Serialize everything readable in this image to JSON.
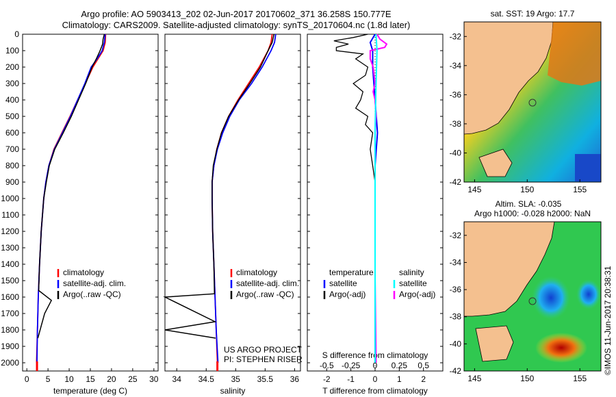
{
  "header": {
    "line1": "Argo profile: AO 5903413_202 02-Jun-2017 20170602_371 36.258S 150.777E",
    "line2": "Climatology: CARS2009. Satellite-adjusted climatology: synTS_20170604.nc (1.8d later)"
  },
  "colors": {
    "climatology": "#ff0000",
    "satellite": "#0000ff",
    "argo": "#000000",
    "sal_satellite": "#00ffff",
    "sal_argo": "#ff00ff",
    "land": "#f4c08f"
  },
  "chart_data": [
    {
      "type": "line",
      "panel": "temperature",
      "xlabel": "temperature (deg C)",
      "ylabel": "",
      "xlim": [
        -1,
        31
      ],
      "ylim": [
        2050,
        0
      ],
      "xticks": [
        "0",
        "5",
        "10",
        "15",
        "20",
        "25",
        "30"
      ],
      "yticks": [
        "0",
        "100",
        "200",
        "300",
        "400",
        "500",
        "600",
        "700",
        "800",
        "900",
        "1000",
        "1100",
        "1200",
        "1300",
        "1400",
        "1500",
        "1600",
        "1700",
        "1800",
        "1900",
        "2000"
      ],
      "legend": [
        "climatology",
        "satellite-adj. clim.",
        "Argo(..raw -QC)"
      ],
      "series": [
        {
          "name": "climatology",
          "y": [
            0,
            50,
            100,
            150,
            200,
            300,
            400,
            500,
            600,
            700,
            800,
            900,
            1000,
            1200,
            1400,
            1600,
            1800,
            2000
          ],
          "values": [
            18.6,
            18.5,
            18.0,
            16.8,
            15.6,
            13.8,
            12.0,
            10.2,
            8.3,
            6.4,
            5.2,
            4.5,
            4.0,
            3.4,
            3.0,
            2.7,
            2.5,
            2.3
          ]
        },
        {
          "name": "satellite-adj. clim.",
          "y": [
            0,
            50,
            100,
            150,
            200,
            300,
            400,
            500,
            600,
            700,
            800,
            900,
            1000,
            1200,
            1400,
            1600,
            1800,
            2000
          ],
          "values": [
            18.5,
            18.3,
            17.8,
            16.6,
            15.2,
            13.7,
            12.0,
            10.3,
            8.4,
            6.5,
            5.2,
            4.5,
            4.0,
            3.4,
            3.0,
            2.7,
            2.5,
            2.4
          ]
        },
        {
          "name": "Argo(..raw -QC)",
          "y": [
            0,
            30,
            60,
            100,
            150,
            200,
            300,
            400,
            500,
            600,
            700,
            800,
            900,
            1000,
            1200,
            1400,
            1560,
            1620,
            1700,
            1850
          ],
          "values": [
            18.3,
            18.0,
            17.9,
            17.3,
            16.4,
            15.4,
            13.9,
            12.2,
            10.5,
            8.6,
            6.6,
            5.3,
            4.6,
            4.0,
            3.4,
            3.0,
            2.8,
            5.8,
            4.2,
            2.6
          ]
        }
      ]
    },
    {
      "type": "line",
      "panel": "salinity",
      "xlabel": "salinity",
      "xlim": [
        33.8,
        36.1
      ],
      "ylim": [
        2050,
        0
      ],
      "xticks": [
        "34",
        "34.5",
        "35",
        "35.5",
        "36"
      ],
      "legend": [
        "climatology",
        "satellite-adj. clim.",
        "Argo(..raw -QC)"
      ],
      "annotation": [
        "US ARGO PROJECT",
        "PI: STEPHEN RISER"
      ],
      "series": [
        {
          "name": "climatology",
          "y": [
            0,
            50,
            100,
            200,
            300,
            400,
            500,
            600,
            700,
            800,
            900,
            1000,
            1200,
            1400,
            1600,
            1800,
            2000
          ],
          "values": [
            35.62,
            35.6,
            35.55,
            35.4,
            35.22,
            35.04,
            34.88,
            34.76,
            34.68,
            34.63,
            34.6,
            34.6,
            34.61,
            34.63,
            34.65,
            34.67,
            34.69
          ]
        },
        {
          "name": "satellite-adj. clim.",
          "y": [
            0,
            50,
            100,
            200,
            300,
            400,
            500,
            600,
            700,
            800,
            900,
            1000,
            1200,
            1400,
            1600,
            1800,
            2000
          ],
          "values": [
            35.68,
            35.66,
            35.6,
            35.45,
            35.27,
            35.06,
            34.9,
            34.78,
            34.69,
            34.63,
            34.6,
            34.6,
            34.61,
            34.63,
            34.65,
            34.67,
            34.7
          ]
        },
        {
          "name": "Argo(..raw -QC)",
          "y": [
            0,
            50,
            100,
            200,
            300,
            400,
            500,
            600,
            700,
            800,
            900,
            1000,
            1200,
            1400,
            1580,
            1600,
            1750,
            1800,
            1850
          ],
          "values": [
            35.65,
            35.62,
            35.55,
            35.42,
            35.24,
            35.05,
            34.88,
            34.76,
            34.68,
            34.62,
            34.6,
            34.6,
            34.61,
            34.63,
            34.64,
            33.8,
            34.65,
            33.8,
            34.66
          ]
        }
      ]
    },
    {
      "type": "line",
      "panel": "difference",
      "xlabel": "T difference from climatology",
      "x2label": "S difference from climatology",
      "xlim": [
        -2.8,
        2.8
      ],
      "x2lim": [
        -0.7,
        0.7
      ],
      "ylim": [
        2050,
        0
      ],
      "xticks": [
        "-2",
        "-1",
        "0",
        "1",
        "2"
      ],
      "x2ticks": [
        "-0.5",
        "-0.25",
        "0",
        "0.25",
        "0.5"
      ],
      "legend_left": [
        "temperature",
        "satellite",
        "Argo(-adj)"
      ],
      "legend_right": [
        "salinity",
        "satellite",
        "Argo(-adj)"
      ],
      "series": [
        {
          "name": "temperature satellite",
          "y": [
            0,
            50,
            100,
            200,
            400,
            600,
            800,
            1000,
            1500,
            2000
          ],
          "values": [
            0.0,
            -0.2,
            -0.1,
            -0.1,
            0.0,
            0.1,
            0.0,
            0.0,
            0.0,
            0.0
          ]
        },
        {
          "name": "temperature Argo(-adj)",
          "y": [
            0,
            20,
            40,
            60,
            80,
            100,
            120,
            150,
            200,
            250,
            300,
            350,
            400,
            450,
            500,
            550,
            600,
            700,
            800,
            900,
            1000,
            1500,
            2000
          ],
          "values": [
            -0.3,
            -0.9,
            -1.7,
            -1.1,
            -1.6,
            -1.6,
            -0.5,
            -0.8,
            -0.3,
            -0.4,
            -0.9,
            -0.5,
            -0.6,
            -0.8,
            -0.3,
            -0.4,
            -0.1,
            -0.2,
            -0.1,
            0.0,
            0.0,
            0.0,
            0.0
          ]
        },
        {
          "name": "salinity satellite",
          "y": [
            0,
            100,
            300,
            600,
            1000,
            1500,
            2000
          ],
          "values": [
            0.01,
            0.02,
            0.01,
            0.0,
            0.0,
            0.0,
            0.0
          ]
        },
        {
          "name": "salinity Argo(-adj)",
          "y": [
            0,
            30,
            60,
            80,
            100,
            150,
            200,
            250,
            300,
            350,
            400,
            500,
            600,
            800,
            1000,
            1500,
            2000
          ],
          "values": [
            0.02,
            0.05,
            0.12,
            0.1,
            -0.05,
            -0.05,
            -0.02,
            -0.01,
            0.0,
            -0.02,
            0.0,
            0.01,
            0.0,
            0.0,
            0.0,
            0.0,
            0.01
          ]
        }
      ]
    },
    {
      "type": "heatmap",
      "panel": "sst-map",
      "title": "sat. SST: 19 Argo: 17.7",
      "xlim": [
        144,
        157
      ],
      "ylim": [
        -42,
        -31
      ],
      "xticks": [
        "145",
        "150",
        "155"
      ],
      "yticks": [
        "-32",
        "-34",
        "-36",
        "-38",
        "-40",
        "-42"
      ],
      "marker": [
        150.777,
        -36.258
      ]
    },
    {
      "type": "heatmap",
      "panel": "sla-map",
      "title": "Altim. SLA: -0.035",
      "subtitle": "Argo h1000: -0.028 h2000: NaN",
      "xlim": [
        144,
        157
      ],
      "ylim": [
        -42,
        -31
      ],
      "xticks": [
        "145",
        "150",
        "155"
      ],
      "yticks": [
        "-32",
        "-34",
        "-36",
        "-38",
        "-40",
        "-42"
      ],
      "marker": [
        150.777,
        -36.258
      ]
    }
  ],
  "credit": "©IMOS 11-Jun-2017 20:38:31"
}
